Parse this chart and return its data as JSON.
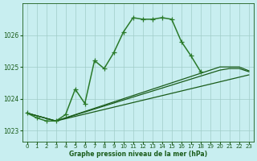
{
  "background_color": "#c8eef0",
  "grid_color": "#a0ccc8",
  "line_color_main": "#1a5c1a",
  "line_color_light": "#2a7a2a",
  "xlabel": "Graphe pression niveau de la mer (hPa)",
  "xlim": [
    -0.5,
    23.5
  ],
  "ylim": [
    1022.65,
    1027.0
  ],
  "yticks": [
    1023,
    1024,
    1025,
    1026
  ],
  "xticks": [
    0,
    1,
    2,
    3,
    4,
    5,
    6,
    7,
    8,
    9,
    10,
    11,
    12,
    13,
    14,
    15,
    16,
    17,
    18,
    19,
    20,
    21,
    22,
    23
  ],
  "fan_line1": {
    "x": [
      0,
      3,
      23
    ],
    "y": [
      1023.55,
      1023.3,
      1024.75
    ]
  },
  "fan_line2": {
    "x": [
      0,
      3,
      20,
      21,
      22,
      23
    ],
    "y": [
      1023.55,
      1023.3,
      1024.9,
      1024.95,
      1024.95,
      1024.85
    ]
  },
  "fan_line3": {
    "x": [
      0,
      3,
      20,
      21,
      22,
      23
    ],
    "y": [
      1023.55,
      1023.3,
      1025.0,
      1025.0,
      1025.0,
      1024.88
    ]
  },
  "series_main": {
    "x": [
      0,
      1,
      2,
      3,
      4,
      5,
      6,
      7,
      8,
      9,
      10,
      11,
      12,
      13,
      14,
      15,
      16,
      17,
      18
    ],
    "y": [
      1023.55,
      1023.4,
      1023.3,
      1023.3,
      1023.5,
      1024.3,
      1023.85,
      1025.2,
      1024.95,
      1025.45,
      1026.1,
      1026.55,
      1026.5,
      1026.5,
      1026.55,
      1026.5,
      1025.8,
      1025.35,
      1024.85
    ]
  }
}
